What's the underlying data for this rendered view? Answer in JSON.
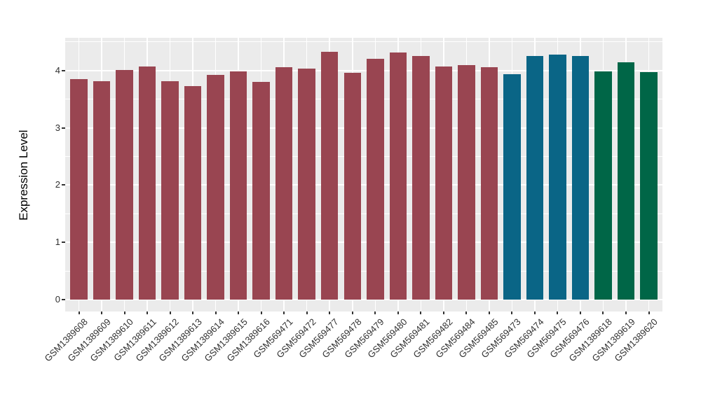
{
  "chart_data": {
    "type": "bar",
    "title": "",
    "xlabel": "",
    "ylabel": "Expression Level",
    "categories": [
      "GSM1389608",
      "GSM1389609",
      "GSM1389610",
      "GSM1389611",
      "GSM1389612",
      "GSM1389613",
      "GSM1389614",
      "GSM1389615",
      "GSM1389616",
      "GSM569471",
      "GSM569472",
      "GSM569477",
      "GSM569478",
      "GSM569479",
      "GSM569480",
      "GSM569481",
      "GSM569482",
      "GSM569484",
      "GSM569485",
      "GSM569473",
      "GSM569474",
      "GSM569475",
      "GSM569476",
      "GSM1389618",
      "GSM1389619",
      "GSM1389620"
    ],
    "values": [
      3.85,
      3.81,
      4.01,
      4.07,
      3.81,
      3.73,
      3.92,
      3.99,
      3.8,
      4.06,
      4.03,
      4.33,
      3.96,
      4.21,
      4.32,
      4.25,
      4.07,
      4.1,
      4.06,
      3.94,
      4.25,
      4.28,
      4.25,
      3.99,
      4.15,
      3.97
    ],
    "bar_colors": [
      "#994551",
      "#994551",
      "#994551",
      "#994551",
      "#994551",
      "#994551",
      "#994551",
      "#994551",
      "#994551",
      "#994551",
      "#994551",
      "#994551",
      "#994551",
      "#994551",
      "#994551",
      "#994551",
      "#994551",
      "#994551",
      "#994551",
      "#0A6586",
      "#0A6586",
      "#0A6586",
      "#0A6586",
      "#006647",
      "#006647",
      "#006647"
    ],
    "group_palette": {
      "group1": "#994551",
      "group2": "#0A6586",
      "group3": "#006647"
    },
    "ytick_labels": [
      "0",
      "1",
      "2",
      "3",
      "4"
    ],
    "yticks": [
      0,
      1,
      2,
      3,
      4
    ],
    "ylim": [
      -0.21,
      4.57
    ],
    "grid": "white major and minor horizontal lines, white vertical line at each category center, on gray panel",
    "legend": "none",
    "panel_bg": "#EBEBEB",
    "grid_color": "#FFFFFF"
  }
}
